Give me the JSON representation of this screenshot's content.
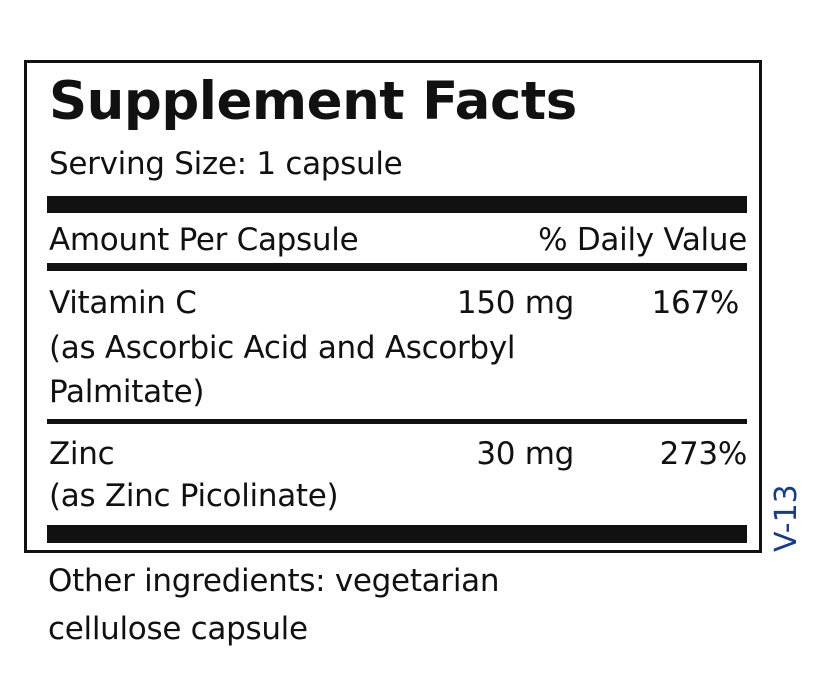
{
  "label": {
    "title": "Supplement Facts",
    "serving_size": "Serving Size: 1 capsule",
    "header": {
      "amount": "Amount Per Capsule",
      "dv": "% Daily Value"
    },
    "ingredients": [
      {
        "name": "Vitamin C",
        "amount": "150 mg",
        "dv": "167%",
        "source_line1": "(as Ascorbic Acid and Ascorbyl",
        "source_line2": "Palmitate)"
      },
      {
        "name": "Zinc",
        "amount": "30 mg",
        "dv": "273%",
        "source_line1": "(as Zinc Picolinate)"
      }
    ],
    "other_line1": "Other ingredients: vegetarian",
    "other_line2": "cellulose capsule",
    "code": "V-13",
    "code_color": "#1a3a8a"
  }
}
